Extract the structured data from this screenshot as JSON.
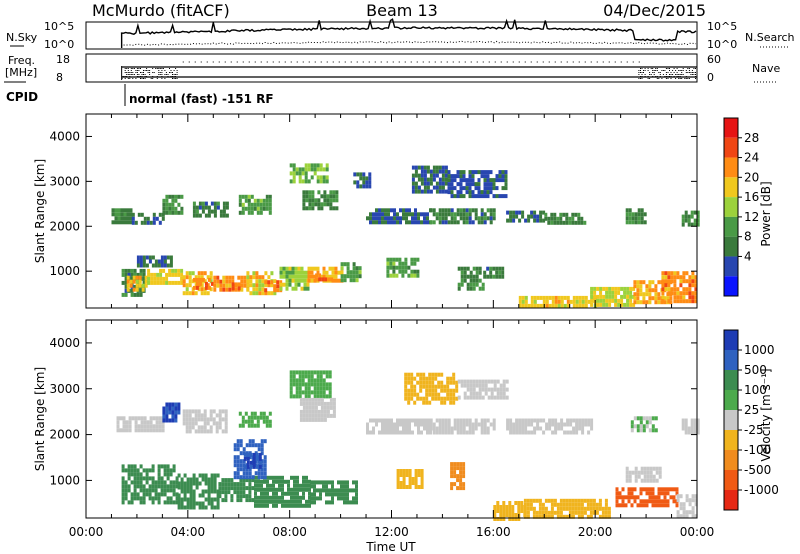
{
  "header": {
    "station": "McMurdo (fitACF)",
    "beam": "Beam 13",
    "date": "04/Dec/2015"
  },
  "status": {
    "nsky_label": "N.Sky",
    "nsearch_label": "N.Search",
    "freq_label": "Freq.",
    "freq_unit": "[MHz]",
    "nave_label": "Nave",
    "cpid_label": "CPID",
    "cpid_value": "normal (fast) -151 RF",
    "noise_ticks": [
      "10^5",
      "10^0"
    ],
    "freq_ticks": [
      "18",
      "8"
    ],
    "nave_ticks": [
      "60",
      "0"
    ]
  },
  "axes": {
    "xlabel": "Time UT",
    "ylabel": "Slant Range [km]",
    "xticks": [
      "00:00",
      "04:00",
      "08:00",
      "12:00",
      "16:00",
      "20:00",
      "00:00"
    ],
    "yticks": [
      "1000",
      "2000",
      "3000",
      "4000"
    ]
  },
  "colorbars": {
    "power": {
      "label": "Power [dB]",
      "ticks": [
        "4",
        "8",
        "12",
        "16",
        "20",
        "24",
        "28"
      ],
      "colors": [
        "#0a14ff",
        "#2846b0",
        "#3a7a3c",
        "#4a9a46",
        "#9cd23c",
        "#f0c81e",
        "#ff8c14",
        "#f04614",
        "#e61414"
      ]
    },
    "velocity": {
      "label": "Velocity [m s⁻¹]",
      "ticks": [
        "1000",
        "500",
        "100",
        "25",
        "-25",
        "-100",
        "-500",
        "-1000"
      ],
      "colors": [
        "#1e3cb4",
        "#2f62c0",
        "#3c8c50",
        "#4caa4c",
        "#c8c8c8",
        "#f0b41e",
        "#f08c1e",
        "#f05a14",
        "#e62814"
      ]
    }
  },
  "chart_data": [
    {
      "type": "heatmap",
      "name": "Power",
      "x_range_hours": [
        0,
        24
      ],
      "y_range_km": [
        180,
        4500
      ],
      "unit": "dB",
      "patches": [
        {
          "t": [
            1.4,
            2.3
          ],
          "r": [
            450,
            1050
          ],
          "v": 10
        },
        {
          "t": [
            1.6,
            2.4
          ],
          "r": [
            600,
            900
          ],
          "v": 22
        },
        {
          "t": [
            2.0,
            3.5
          ],
          "r": [
            1150,
            1350
          ],
          "v": 9
        },
        {
          "t": [
            2.4,
            3.8
          ],
          "r": [
            700,
            1050
          ],
          "v": 21
        },
        {
          "t": [
            3.8,
            4.9
          ],
          "r": [
            550,
            1000
          ],
          "v": 22
        },
        {
          "t": [
            4.2,
            5.0
          ],
          "r": [
            650,
            850
          ],
          "v": 28
        },
        {
          "t": [
            5.0,
            6.3
          ],
          "r": [
            550,
            900
          ],
          "v": 26
        },
        {
          "t": [
            5.6,
            6.0
          ],
          "r": [
            600,
            750
          ],
          "v": 28
        },
        {
          "t": [
            6.3,
            7.4
          ],
          "r": [
            550,
            1000
          ],
          "v": 22
        },
        {
          "t": [
            7.0,
            7.6
          ],
          "r": [
            600,
            800
          ],
          "v": 28
        },
        {
          "t": [
            7.6,
            8.7
          ],
          "r": [
            600,
            1100
          ],
          "v": 18
        },
        {
          "t": [
            8.7,
            10.0
          ],
          "r": [
            750,
            1100
          ],
          "v": 24
        },
        {
          "t": [
            9.0,
            9.6
          ],
          "r": [
            800,
            950
          ],
          "v": 28
        },
        {
          "t": [
            10.0,
            10.8
          ],
          "r": [
            800,
            1200
          ],
          "v": 14
        },
        {
          "t": [
            11.8,
            13.0
          ],
          "r": [
            900,
            1300
          ],
          "v": 14
        },
        {
          "t": [
            14.6,
            15.6
          ],
          "r": [
            650,
            1100
          ],
          "v": 12
        },
        {
          "t": [
            15.6,
            16.4
          ],
          "r": [
            900,
            1100
          ],
          "v": 10
        },
        {
          "t": [
            1.0,
            1.8
          ],
          "r": [
            2100,
            2400
          ],
          "v": 11
        },
        {
          "t": [
            1.8,
            3.0
          ],
          "r": [
            2100,
            2300
          ],
          "v": 8
        },
        {
          "t": [
            3.0,
            3.8
          ],
          "r": [
            2300,
            2700
          ],
          "v": 13
        },
        {
          "t": [
            4.2,
            5.5
          ],
          "r": [
            2250,
            2550
          ],
          "v": 10
        },
        {
          "t": [
            6.0,
            7.2
          ],
          "r": [
            2300,
            2700
          ],
          "v": 14
        },
        {
          "t": [
            8.0,
            9.5
          ],
          "r": [
            3000,
            3400
          ],
          "v": 16
        },
        {
          "t": [
            8.5,
            9.8
          ],
          "r": [
            2400,
            2800
          ],
          "v": 12
        },
        {
          "t": [
            10.5,
            11.2
          ],
          "r": [
            2900,
            3200
          ],
          "v": 8
        },
        {
          "t": [
            11.0,
            13.5
          ],
          "r": [
            2050,
            2400
          ],
          "v": 8
        },
        {
          "t": [
            12.8,
            14.2
          ],
          "r": [
            2750,
            3350
          ],
          "v": 8
        },
        {
          "t": [
            14.2,
            16.5
          ],
          "r": [
            2650,
            3250
          ],
          "v": 7
        },
        {
          "t": [
            13.5,
            16.0
          ],
          "r": [
            2050,
            2400
          ],
          "v": 10
        },
        {
          "t": [
            16.5,
            18.0
          ],
          "r": [
            2100,
            2350
          ],
          "v": 8
        },
        {
          "t": [
            18.0,
            19.6
          ],
          "r": [
            2050,
            2300
          ],
          "v": 11
        },
        {
          "t": [
            21.2,
            22.0
          ],
          "r": [
            2100,
            2400
          ],
          "v": 12
        },
        {
          "t": [
            23.4,
            24.0
          ],
          "r": [
            2050,
            2350
          ],
          "v": 12
        },
        {
          "t": [
            17.0,
            20.0
          ],
          "r": [
            220,
            450
          ],
          "v": 22
        },
        {
          "t": [
            19.8,
            21.5
          ],
          "r": [
            250,
            650
          ],
          "v": 20
        },
        {
          "t": [
            21.5,
            23.0
          ],
          "r": [
            300,
            800
          ],
          "v": 24
        },
        {
          "t": [
            22.6,
            24.0
          ],
          "r": [
            350,
            1000
          ],
          "v": 26
        }
      ]
    },
    {
      "type": "heatmap",
      "name": "Velocity",
      "x_range_hours": [
        0,
        24
      ],
      "y_range_km": [
        180,
        4500
      ],
      "unit": "m s-1",
      "patches": [
        {
          "t": [
            1.4,
            3.6
          ],
          "r": [
            550,
            1350
          ],
          "v": 150
        },
        {
          "t": [
            3.6,
            5.2
          ],
          "r": [
            450,
            1150
          ],
          "v": 150
        },
        {
          "t": [
            5.2,
            6.6
          ],
          "r": [
            550,
            1050
          ],
          "v": 150
        },
        {
          "t": [
            6.6,
            8.8
          ],
          "r": [
            450,
            1100
          ],
          "v": 150
        },
        {
          "t": [
            8.8,
            10.6
          ],
          "r": [
            550,
            1000
          ],
          "v": 150
        },
        {
          "t": [
            5.8,
            7.0
          ],
          "r": [
            1100,
            1900
          ],
          "v": 600
        },
        {
          "t": [
            6.2,
            6.8
          ],
          "r": [
            1300,
            1600
          ],
          "v": 1000
        },
        {
          "t": [
            1.2,
            3.0
          ],
          "r": [
            2100,
            2400
          ],
          "v": 0
        },
        {
          "t": [
            3.0,
            3.6
          ],
          "r": [
            2350,
            2700
          ],
          "v": 1000
        },
        {
          "t": [
            3.8,
            5.5
          ],
          "r": [
            2100,
            2550
          ],
          "v": 0
        },
        {
          "t": [
            6.0,
            7.2
          ],
          "r": [
            2200,
            2500
          ],
          "v": 60
        },
        {
          "t": [
            8.0,
            9.6
          ],
          "r": [
            2850,
            3400
          ],
          "v": 60
        },
        {
          "t": [
            8.4,
            9.8
          ],
          "r": [
            2300,
            2800
          ],
          "v": 0
        },
        {
          "t": [
            11.0,
            13.5
          ],
          "r": [
            2050,
            2350
          ],
          "v": 0
        },
        {
          "t": [
            12.5,
            14.6
          ],
          "r": [
            2700,
            3350
          ],
          "v": -60
        },
        {
          "t": [
            14.6,
            16.6
          ],
          "r": [
            2800,
            3200
          ],
          "v": 0
        },
        {
          "t": [
            13.5,
            16.0
          ],
          "r": [
            2050,
            2350
          ],
          "v": 0
        },
        {
          "t": [
            16.5,
            19.8
          ],
          "r": [
            2050,
            2350
          ],
          "v": 0
        },
        {
          "t": [
            14.3,
            14.8
          ],
          "r": [
            800,
            1400
          ],
          "v": -200
        },
        {
          "t": [
            12.2,
            13.2
          ],
          "r": [
            900,
            1250
          ],
          "v": -60
        },
        {
          "t": [
            16.0,
            17.2
          ],
          "r": [
            200,
            550
          ],
          "v": -60
        },
        {
          "t": [
            17.2,
            20.6
          ],
          "r": [
            250,
            600
          ],
          "v": -60
        },
        {
          "t": [
            20.8,
            23.2
          ],
          "r": [
            450,
            850
          ],
          "v": -700
        },
        {
          "t": [
            21.2,
            22.6
          ],
          "r": [
            1000,
            1300
          ],
          "v": 0
        },
        {
          "t": [
            23.2,
            24.0
          ],
          "r": [
            250,
            700
          ],
          "v": 0
        },
        {
          "t": [
            21.4,
            22.4
          ],
          "r": [
            2100,
            2400
          ],
          "v": 30
        },
        {
          "t": [
            23.4,
            24.0
          ],
          "r": [
            2050,
            2350
          ],
          "v": 0
        }
      ]
    }
  ]
}
